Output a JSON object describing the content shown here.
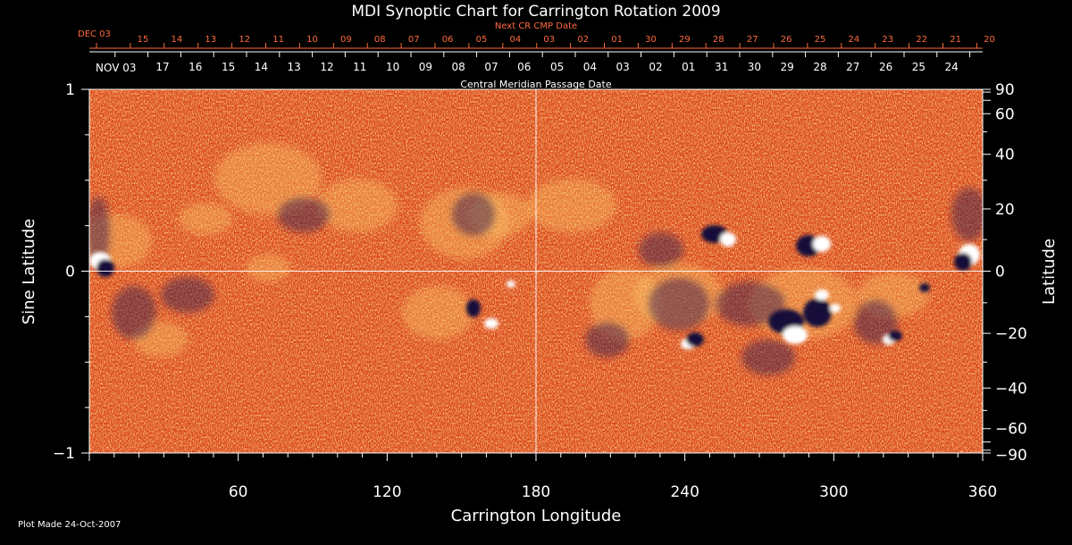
{
  "chart_data": {
    "type": "heatmap",
    "title": "MDI Synoptic Chart for Carrington Rotation 2009",
    "xlabel": "Carrington Longitude",
    "ylabel_left": "Sine Latitude",
    "ylabel_right": "Latitude",
    "xlim": [
      0,
      360
    ],
    "ylim": [
      -1,
      1
    ],
    "x_ticks": [
      "60",
      "120",
      "180",
      "240",
      "300",
      "360"
    ],
    "y_ticks_left": [
      "1",
      "0",
      "−1"
    ],
    "y_ticks_right": [
      "90",
      "60",
      "40",
      "20",
      "0",
      "−20",
      "−40",
      "−60",
      "−90"
    ],
    "reference_lines": {
      "longitude": 180,
      "latitude": 0
    },
    "top_axis": {
      "label": "Central Meridian Passage Date",
      "month_label": "NOV 03",
      "dates": [
        "17",
        "16",
        "15",
        "14",
        "13",
        "12",
        "11",
        "10",
        "09",
        "08",
        "07",
        "06",
        "05",
        "04",
        "03",
        "02",
        "01",
        "31",
        "30",
        "29",
        "28",
        "27",
        "26",
        "25",
        "24"
      ]
    },
    "next_axis": {
      "label": "Next CR CMP Date",
      "month_label": "DEC 03",
      "dates": [
        "15",
        "14",
        "13",
        "12",
        "11",
        "10",
        "09",
        "08",
        "07",
        "06",
        "05",
        "04",
        "03",
        "02",
        "01",
        "30",
        "29",
        "28",
        "27",
        "26",
        "25",
        "24",
        "23",
        "22",
        "21",
        "20"
      ]
    },
    "colors": {
      "background": "#000000",
      "field": "#e8501a",
      "positive": "#ffffff",
      "negative": "#1a1440",
      "next_axis": "#ff6a3d"
    }
  },
  "footer": {
    "plot_made": "Plot Made 24-Oct-2007"
  }
}
